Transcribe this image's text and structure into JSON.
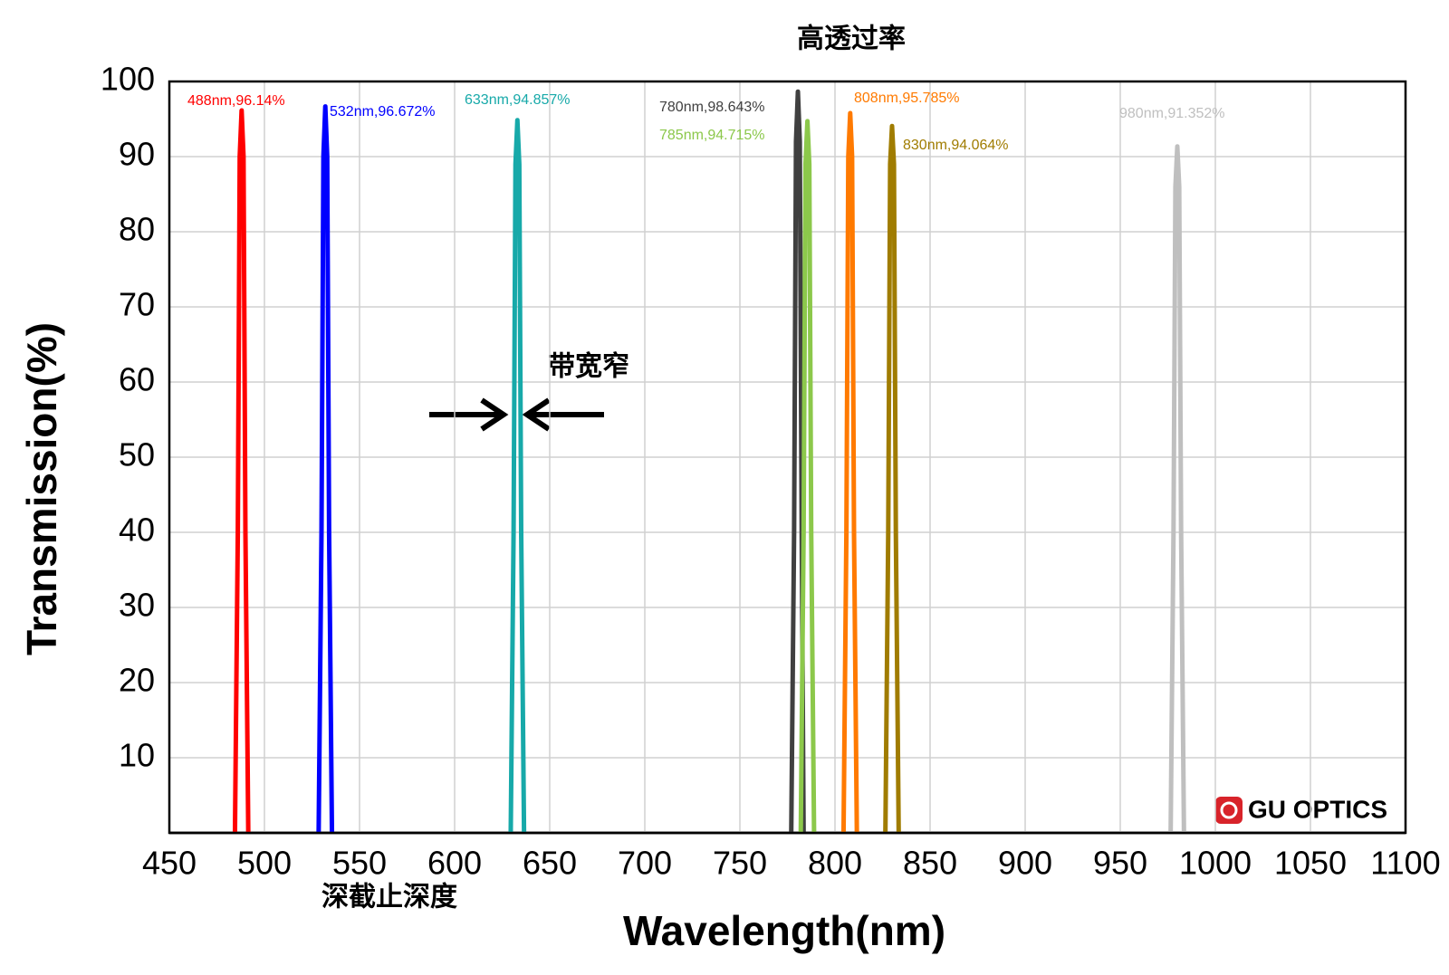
{
  "chart_data": {
    "type": "line",
    "xlabel": "Wavelength(nm)",
    "ylabel": "Transmission(%)",
    "xlim": [
      450,
      1100
    ],
    "ylim": [
      0,
      100
    ],
    "xticks": [
      450,
      500,
      550,
      600,
      650,
      700,
      750,
      800,
      850,
      900,
      950,
      1000,
      1050,
      1100
    ],
    "yticks": [
      10,
      20,
      30,
      40,
      50,
      60,
      70,
      80,
      90,
      100
    ],
    "grid": true,
    "annotations": [
      "高透过率",
      "带宽窄",
      "深截止深度",
      "GU OPTICS"
    ],
    "series": [
      {
        "name": "488nm,96.14%",
        "color": "#ff0000",
        "x": [
          484.5,
          486,
          487,
          488,
          489,
          490,
          491.5
        ],
        "values": [
          0,
          40,
          90,
          96.14,
          90,
          40,
          0
        ]
      },
      {
        "name": "532nm,96.672%",
        "color": "#0000ff",
        "x": [
          528.5,
          530,
          531,
          532,
          533,
          534,
          535.5
        ],
        "values": [
          0,
          40,
          90,
          96.672,
          90,
          40,
          0
        ]
      },
      {
        "name": "633nm,94.857%",
        "color": "#17a9a9",
        "x": [
          629.5,
          631,
          632,
          633,
          634,
          635,
          636.5
        ],
        "values": [
          0,
          40,
          89,
          94.857,
          89,
          40,
          0
        ]
      },
      {
        "name": "780nm,98.643%",
        "color": "#404040",
        "x": [
          777,
          778.5,
          779.5,
          780.5,
          781.5,
          782.5,
          783.5
        ],
        "values": [
          0,
          40,
          92,
          98.643,
          92,
          40,
          0
        ]
      },
      {
        "name": "785nm,94.715%",
        "color": "#8cc84b",
        "x": [
          782,
          783.5,
          784.5,
          785.5,
          786.5,
          787.5,
          789
        ],
        "values": [
          0,
          40,
          89,
          94.715,
          89,
          40,
          0
        ]
      },
      {
        "name": "808nm,95.785%",
        "color": "#ff7a00",
        "x": [
          804.5,
          806,
          807,
          808,
          809,
          810,
          811.5
        ],
        "values": [
          0,
          40,
          90,
          95.785,
          90,
          40,
          0
        ]
      },
      {
        "name": "830nm,94.064%",
        "color": "#a07c00",
        "x": [
          826.5,
          828,
          829,
          830,
          831,
          832,
          833.5
        ],
        "values": [
          0,
          40,
          89,
          94.064,
          89,
          40,
          0
        ]
      },
      {
        "name": "980nm,91.352%",
        "color": "#bfbfbf",
        "x": [
          976.5,
          978,
          979,
          980,
          981,
          982,
          983.5
        ],
        "values": [
          0,
          40,
          86,
          91.352,
          86,
          40,
          0
        ]
      }
    ]
  }
}
